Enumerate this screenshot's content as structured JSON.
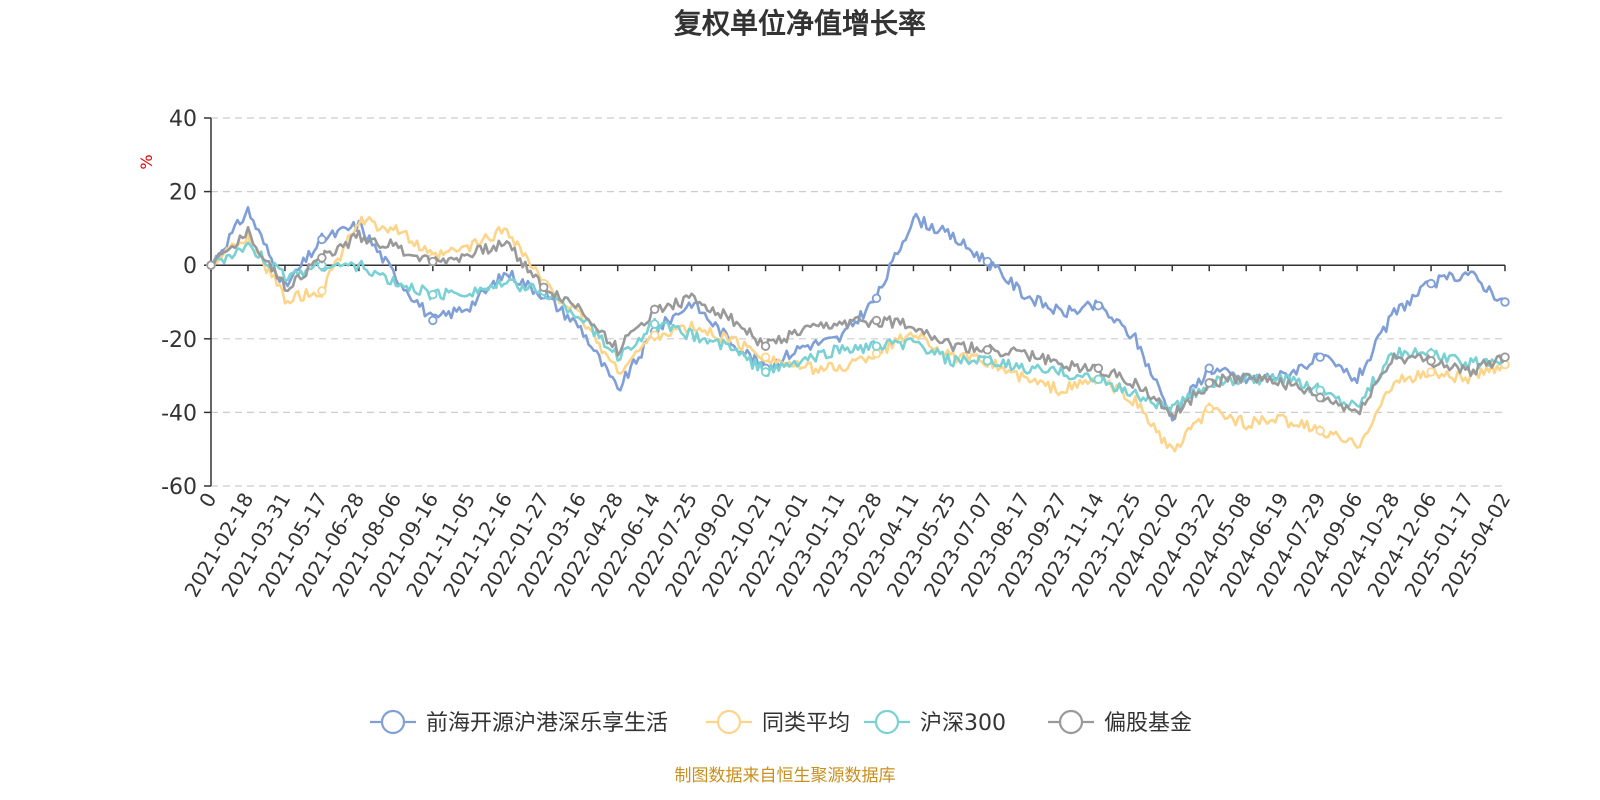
{
  "chart_data": {
    "type": "line",
    "title": "复权单位净值增长率",
    "ylabel": "%",
    "ylim": [
      -60,
      40
    ],
    "yticks": [
      40,
      20,
      0,
      -20,
      -40,
      -60
    ],
    "grid": true,
    "legend_position": "bottom",
    "source": "制图数据来自恒生聚源数据库",
    "x_labels": [
      "0",
      "2021-02-18",
      "2021-03-31",
      "2021-05-17",
      "2021-06-28",
      "2021-08-06",
      "2021-09-16",
      "2021-11-05",
      "2021-12-16",
      "2022-01-27",
      "2022-03-16",
      "2022-04-28",
      "2022-06-14",
      "2022-07-25",
      "2022-09-02",
      "2022-10-21",
      "2022-12-01",
      "2023-01-11",
      "2023-02-28",
      "2023-04-11",
      "2023-05-25",
      "2023-07-07",
      "2023-08-17",
      "2023-09-27",
      "2023-11-14",
      "2023-12-25",
      "2024-02-02",
      "2024-03-22",
      "2024-05-08",
      "2024-06-19",
      "2024-07-29",
      "2024-09-06",
      "2024-10-28",
      "2024-12-06",
      "2025-01-17",
      "2025-04-02"
    ],
    "series": [
      {
        "name": "前海开源沪港深乐享生活",
        "color": "#7f9fd6",
        "values": [
          0,
          15,
          -6,
          7,
          11,
          -3,
          -15,
          -11,
          -2,
          -8,
          -17,
          -34,
          -18,
          -10,
          -20,
          -28,
          -22,
          -20,
          -9,
          13,
          8,
          1,
          -8,
          -13,
          -11,
          -20,
          -41,
          -28,
          -31,
          -30,
          -25,
          -31,
          -13,
          -5,
          -2,
          -10
        ]
      },
      {
        "name": "同类平均",
        "color": "#fdd58a",
        "values": [
          0,
          8,
          -9,
          -7,
          12,
          10,
          2,
          5,
          10,
          -5,
          -14,
          -29,
          -19,
          -17,
          -20,
          -25,
          -28,
          -28,
          -24,
          -18,
          -25,
          -26,
          -31,
          -34,
          -31,
          -37,
          -51,
          -39,
          -43,
          -42,
          -45,
          -49,
          -32,
          -29,
          -31,
          -27
        ]
      },
      {
        "name": "沪深300",
        "color": "#7ad1d3",
        "values": [
          0,
          5,
          -3,
          0,
          0,
          -5,
          -8,
          -7,
          -5,
          -7,
          -14,
          -25,
          -16,
          -19,
          -22,
          -29,
          -26,
          -23,
          -22,
          -21,
          -26,
          -26,
          -28,
          -29,
          -31,
          -35,
          -39,
          -32,
          -31,
          -31,
          -34,
          -38,
          -24,
          -24,
          -27,
          -25
        ]
      },
      {
        "name": "偏股基金",
        "color": "#999999",
        "values": [
          0,
          9,
          -6,
          2,
          8,
          5,
          1,
          3,
          6,
          -6,
          -12,
          -23,
          -12,
          -9,
          -14,
          -22,
          -18,
          -16,
          -15,
          -16,
          -22,
          -23,
          -24,
          -27,
          -28,
          -32,
          -41,
          -32,
          -30,
          -32,
          -36,
          -40,
          -25,
          -26,
          -29,
          -25
        ]
      }
    ]
  }
}
